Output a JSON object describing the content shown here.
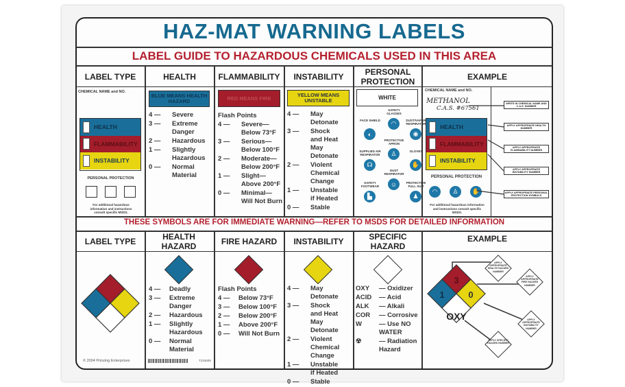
{
  "title": "HAZ-MAT WARNING LABELS",
  "subtitle": "LABEL GUIDE TO HAZARDOUS CHEMICALS USED IN THIS AREA",
  "colors": {
    "title": "#16698f",
    "red_text": "#b4202e",
    "health_blue": "#1a6f9a",
    "fire_red": "#a31d2b",
    "instability_yellow": "#e6d510"
  },
  "top": {
    "headers": [
      "LABEL TYPE",
      "HEALTH",
      "FLAMMABILITY",
      "INSTABILITY",
      "PERSONAL PROTECTION",
      "EXAMPLE"
    ],
    "label_type": {
      "chem_name": "CHEMICAL NAME and NO.",
      "bands": [
        "HEALTH",
        "FLAMMABILITY",
        "INSTABILITY"
      ],
      "pp": "PERSONAL PROTECTION",
      "note": "For additional hazardous information and instructions consult specific MSDS."
    },
    "health": {
      "box": "BLUE MEANS HEALTH HAZARD",
      "items": [
        {
          "n": "4 —",
          "t": "Severe"
        },
        {
          "n": "3 —",
          "t": "Extreme\nDanger"
        },
        {
          "n": "2 —",
          "t": "Hazardous"
        },
        {
          "n": "1 —",
          "t": "Slightly\nHazardous"
        },
        {
          "n": "0 —",
          "t": "Normal\nMaterial"
        }
      ]
    },
    "flammability": {
      "box": "RED MEANS FIRE",
      "heading": "Flash Points",
      "items": [
        {
          "n": "4 —",
          "t": "Severe—\nBelow 73°F"
        },
        {
          "n": "3 —",
          "t": "Serious—\nBelow 100°F"
        },
        {
          "n": "2 —",
          "t": "Moderate—\nBelow 200°F"
        },
        {
          "n": "1 —",
          "t": "Slight—\nAbove 200°F"
        },
        {
          "n": "0 —",
          "t": "Minimal—\nWill Not Burn"
        }
      ]
    },
    "instability": {
      "box": "YELLOW MEANS UNSTABLE",
      "items": [
        {
          "n": "4 —",
          "t": "May Detonate"
        },
        {
          "n": "3 —",
          "t": "Shock\n  and Heat\nMay Detonate"
        },
        {
          "n": "2 —",
          "t": "Violent\nChemical\nChange"
        },
        {
          "n": "1 —",
          "t": "Unstable\n  if Heated"
        },
        {
          "n": "0 —",
          "t": "Stable"
        }
      ]
    },
    "protection": {
      "box": "WHITE",
      "icons": [
        {
          "label": "SAFETY GLASSES",
          "icon": "safety-glasses-icon",
          "glyph": "◠"
        },
        {
          "label": "FACE SHIELD",
          "icon": "face-shield-icon",
          "glyph": "◐"
        },
        {
          "label": "DUST/VAPOR RESPIRATOR",
          "icon": "respirator-icon",
          "glyph": "◉"
        },
        {
          "label": "PROTECTIVE APRON",
          "icon": "apron-icon",
          "glyph": "♙"
        },
        {
          "label": "SUPPLIED AIR RESPIRATOR",
          "icon": "supplied-air-icon",
          "glyph": "☊"
        },
        {
          "label": "GLOVES",
          "icon": "gloves-icon",
          "glyph": "✋"
        },
        {
          "label": "DUST RESPIRATOR",
          "icon": "dust-respirator-icon",
          "glyph": "☺"
        },
        {
          "label": "SAFETY FOOTWEAR",
          "icon": "footwear-icon",
          "glyph": "▙"
        },
        {
          "label": "PROTECTIVE FULL SUIT",
          "icon": "full-suit-icon",
          "glyph": "♟"
        }
      ]
    },
    "example": {
      "chem_name": "CHEMICAL NAME and NO.",
      "handwritten_name": "METHANOL",
      "handwritten_cas": "C.A.S. #67561",
      "bands": [
        "HEALTH",
        "FLAMMABILITY",
        "INSTABILITY"
      ],
      "pp": "PERSONAL PROTECTION",
      "note": "For additional hazardous information and instructions consult specific MSDS.",
      "callouts": [
        "WRITE IN CHEMICAL NAME AND C.A.S. NUMBER",
        "APPLY APPROPRIATE HEALTH NUMBER",
        "APPLY APPROPRIATE FLAMMABILITY NUMBER",
        "APPLY APPROPRIATE INSTABILITY NUMBER",
        "APPLY APPROPRIATE PERSONAL PROTECTION SYMBOLS"
      ]
    }
  },
  "warning": "THESE SYMBOLS ARE FOR IMMEDIATE WARNING—REFER TO MSDS FOR DETAILED INFORMATION",
  "bottom": {
    "headers": [
      "LABEL TYPE",
      "HEALTH HAZARD",
      "FIRE HAZARD",
      "INSTABILITY",
      "SPECIFIC HAZARD",
      "EXAMPLE"
    ],
    "health": [
      {
        "n": "4 —",
        "t": "Deadly"
      },
      {
        "n": "3 —",
        "t": "Extreme\nDanger"
      },
      {
        "n": "2 —",
        "t": "Hazardous"
      },
      {
        "n": "1 —",
        "t": "Slightly\nHazardous"
      },
      {
        "n": "0 —",
        "t": "Normal\nMaterial"
      }
    ],
    "fire_heading": "Flash Points",
    "fire": [
      {
        "n": "4 —",
        "t": "Below 73°F"
      },
      {
        "n": "3 —",
        "t": "Below 100°F"
      },
      {
        "n": "2 —",
        "t": "Below 200°F"
      },
      {
        "n": "1 —",
        "t": "Above 200°F"
      },
      {
        "n": "0 —",
        "t": "Will Not Burn"
      }
    ],
    "instability": [
      {
        "n": "4 —",
        "t": "May Detonate"
      },
      {
        "n": "3 —",
        "t": "Shock\n  and Heat\nMay Detonate"
      },
      {
        "n": "2 —",
        "t": "Violent\nChemical\nChange"
      },
      {
        "n": "1 —",
        "t": "Unstable\n  if Heated"
      },
      {
        "n": "0 —",
        "t": "Stable"
      }
    ],
    "specific": [
      {
        "n": "OXY",
        "t": "— Oxidizer"
      },
      {
        "n": "ACID",
        "t": "— Acid"
      },
      {
        "n": "ALK",
        "t": "— Alkali"
      },
      {
        "n": "COR",
        "t": "— Corrosive"
      },
      {
        "n": "W",
        "t": "— Use NO\n   WATER"
      },
      {
        "n": "☢",
        "t": "— Radiation\n   Hazard"
      }
    ],
    "example": {
      "health": "1",
      "fire": "3",
      "instability": "0",
      "specific": "OXY",
      "callouts": [
        "APPLY APPROPRIATE HEALTH HAZARD NUMBER",
        "APPLY APPROPRIATE FIRE HAZARD NUMBER",
        "APPLY APPROPRIATE INSTABILITY NUMBER",
        "APPLY SPECIFIC HAZARD NUMBER"
      ]
    },
    "copyright": "© 2004 Prinzing Enterprises",
    "product_code": "T234609"
  }
}
